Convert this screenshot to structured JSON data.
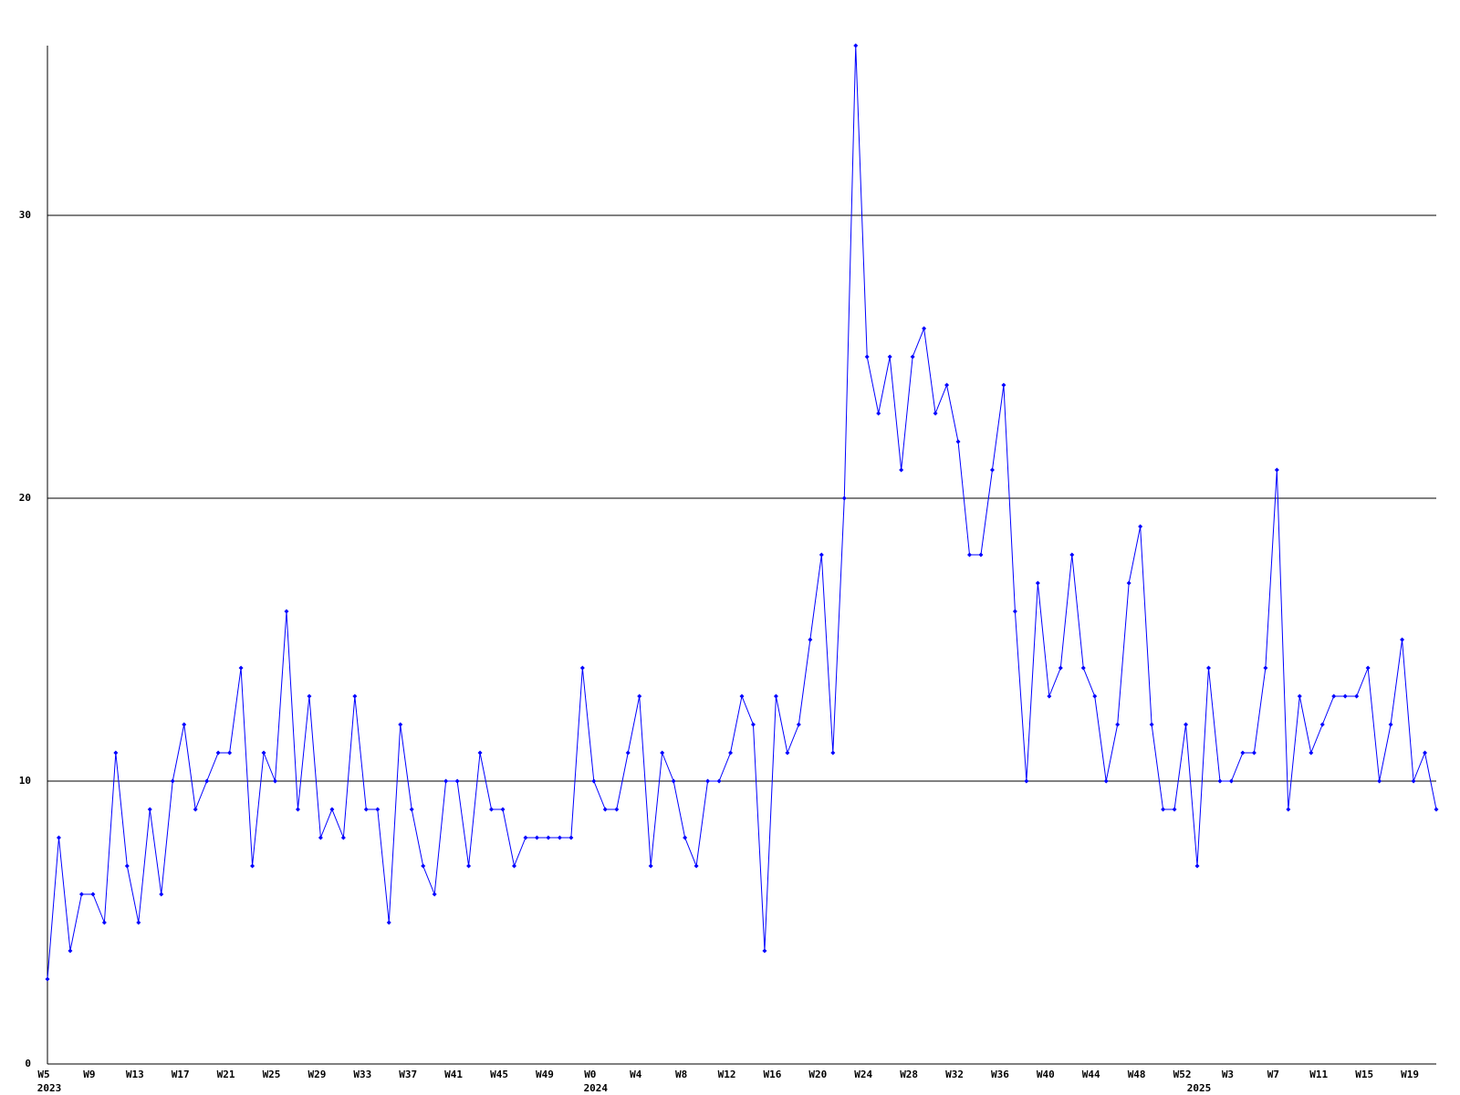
{
  "chart_data": {
    "type": "line",
    "categories": [
      "W5",
      null,
      null,
      null,
      "W9",
      null,
      null,
      null,
      "W13",
      null,
      null,
      null,
      "W17",
      null,
      null,
      null,
      "W21",
      null,
      null,
      null,
      "W25",
      null,
      null,
      null,
      "W29",
      null,
      null,
      null,
      "W33",
      null,
      null,
      null,
      "W37",
      null,
      null,
      null,
      "W41",
      null,
      null,
      null,
      "W45",
      null,
      null,
      null,
      "W49",
      null,
      null,
      null,
      "W0",
      null,
      null,
      null,
      "W4",
      null,
      null,
      null,
      "W8",
      null,
      null,
      null,
      "W12",
      null,
      null,
      null,
      "W16",
      null,
      null,
      null,
      "W20",
      null,
      null,
      null,
      "W24",
      null,
      null,
      null,
      "W28",
      null,
      null,
      null,
      "W32",
      null,
      null,
      null,
      "W36",
      null,
      null,
      null,
      "W40",
      null,
      null,
      null,
      "W44",
      null,
      null,
      null,
      "W48",
      null,
      null,
      null,
      "W52",
      null,
      null,
      null,
      "W3",
      null,
      null,
      null,
      "W7",
      null,
      null,
      null,
      "W11",
      null,
      null,
      null,
      "W15",
      null,
      null,
      null,
      "W19",
      null,
      null
    ],
    "category_years": [
      "2023",
      null,
      null,
      null,
      null,
      null,
      null,
      null,
      null,
      null,
      null,
      null,
      null,
      null,
      null,
      null,
      null,
      null,
      null,
      null,
      null,
      null,
      null,
      null,
      null,
      null,
      null,
      null,
      null,
      null,
      null,
      null,
      null,
      null,
      null,
      null,
      null,
      null,
      null,
      null,
      null,
      null,
      null,
      null,
      null,
      null,
      null,
      null,
      "2024",
      null,
      null,
      null,
      null,
      null,
      null,
      null,
      null,
      null,
      null,
      null,
      null,
      null,
      null,
      null,
      null,
      null,
      null,
      null,
      null,
      null,
      null,
      null,
      null,
      null,
      null,
      null,
      null,
      null,
      null,
      null,
      null,
      null,
      null,
      null,
      null,
      null,
      null,
      null,
      null,
      null,
      null,
      null,
      null,
      null,
      null,
      null,
      null,
      null,
      null,
      null,
      null,
      "2025",
      null,
      null,
      null,
      null,
      null,
      null,
      null,
      null,
      null,
      null,
      null,
      null,
      null,
      null,
      null,
      null,
      null,
      null,
      null,
      null,
      null
    ],
    "values": [
      3,
      8,
      4,
      6,
      6,
      5,
      11,
      7,
      5,
      9,
      6,
      10,
      12,
      9,
      10,
      11,
      11,
      14,
      7,
      11,
      10,
      16,
      9,
      13,
      8,
      9,
      8,
      13,
      9,
      9,
      5,
      12,
      9,
      7,
      6,
      10,
      10,
      7,
      11,
      9,
      9,
      7,
      8,
      8,
      8,
      8,
      8,
      14,
      10,
      9,
      9,
      11,
      13,
      7,
      11,
      10,
      8,
      7,
      10,
      10,
      11,
      13,
      12,
      4,
      13,
      11,
      12,
      15,
      18,
      11,
      20,
      36,
      25,
      23,
      25,
      21,
      25,
      26,
      23,
      24,
      22,
      18,
      18,
      21,
      24,
      16,
      10,
      17,
      13,
      14,
      18,
      14,
      13,
      10,
      12,
      17,
      19,
      12,
      9,
      9,
      12,
      7,
      14,
      10,
      10,
      11,
      11,
      14,
      21,
      9,
      13,
      11,
      12,
      13,
      13,
      13,
      14,
      10,
      12,
      15,
      10,
      11,
      9
    ],
    "color": "#0000ff",
    "ylim": [
      0,
      36
    ],
    "yticks": [
      0,
      10,
      20,
      30
    ],
    "grid": true
  }
}
